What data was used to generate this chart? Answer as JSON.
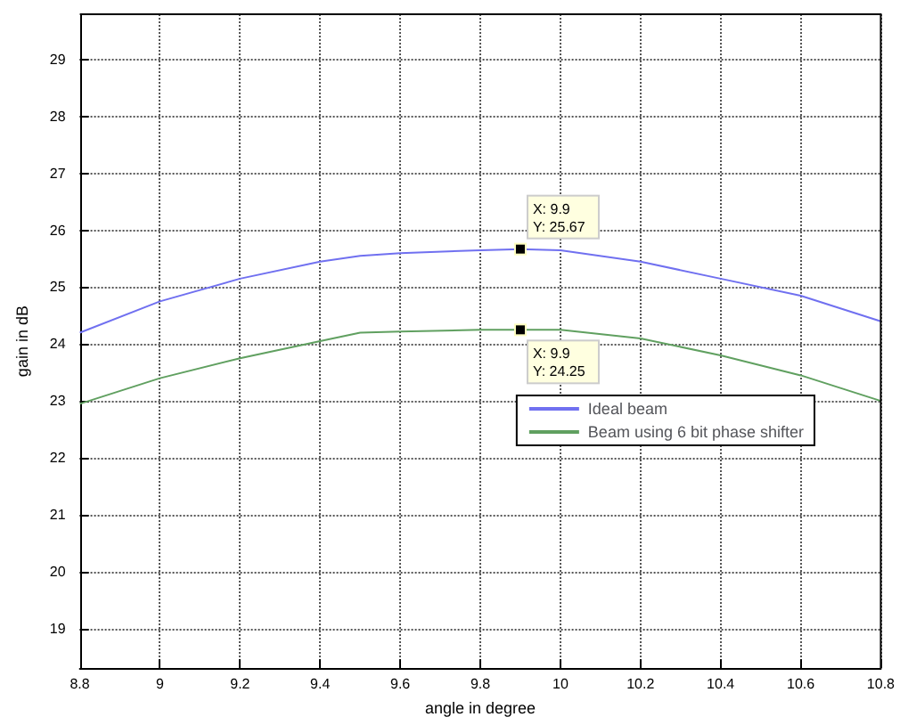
{
  "chart_data": {
    "type": "line",
    "xlabel": "angle in degree",
    "ylabel": "gain in dB",
    "x": [
      8.8,
      9.0,
      9.2,
      9.4,
      9.5,
      9.6,
      9.8,
      9.9,
      10.0,
      10.2,
      10.4,
      10.6,
      10.8
    ],
    "series": [
      {
        "name": "Ideal beam",
        "color": "#7070f0",
        "values": [
          24.2,
          24.75,
          25.15,
          25.45,
          25.55,
          25.6,
          25.65,
          25.67,
          25.65,
          25.45,
          25.15,
          24.85,
          24.4
        ]
      },
      {
        "name": "Beam using 6 bit phase shifter",
        "color": "#60a060",
        "values": [
          22.95,
          23.4,
          23.75,
          24.05,
          24.2,
          24.22,
          24.25,
          24.25,
          24.25,
          24.1,
          23.8,
          23.45,
          23.0
        ]
      }
    ],
    "annotations": [
      {
        "text": "X: 9.9\nY: 25.67",
        "x": 9.9,
        "y": 25.67
      },
      {
        "text": "X: 9.9\nY: 24.25",
        "x": 9.9,
        "y": 24.25
      }
    ],
    "xlim": [
      8.8,
      10.8
    ],
    "xticks": [
      8.8,
      9,
      9.2,
      9.4,
      9.6,
      9.8,
      10,
      10.2,
      10.4,
      10.6,
      10.8
    ],
    "ylim": [
      18.3,
      29.8
    ],
    "yticks": [
      19,
      20,
      21,
      22,
      23,
      24,
      25,
      26,
      27,
      28,
      29
    ],
    "grid": true,
    "legend": "right",
    "marker": "none",
    "line_style": "solid"
  }
}
